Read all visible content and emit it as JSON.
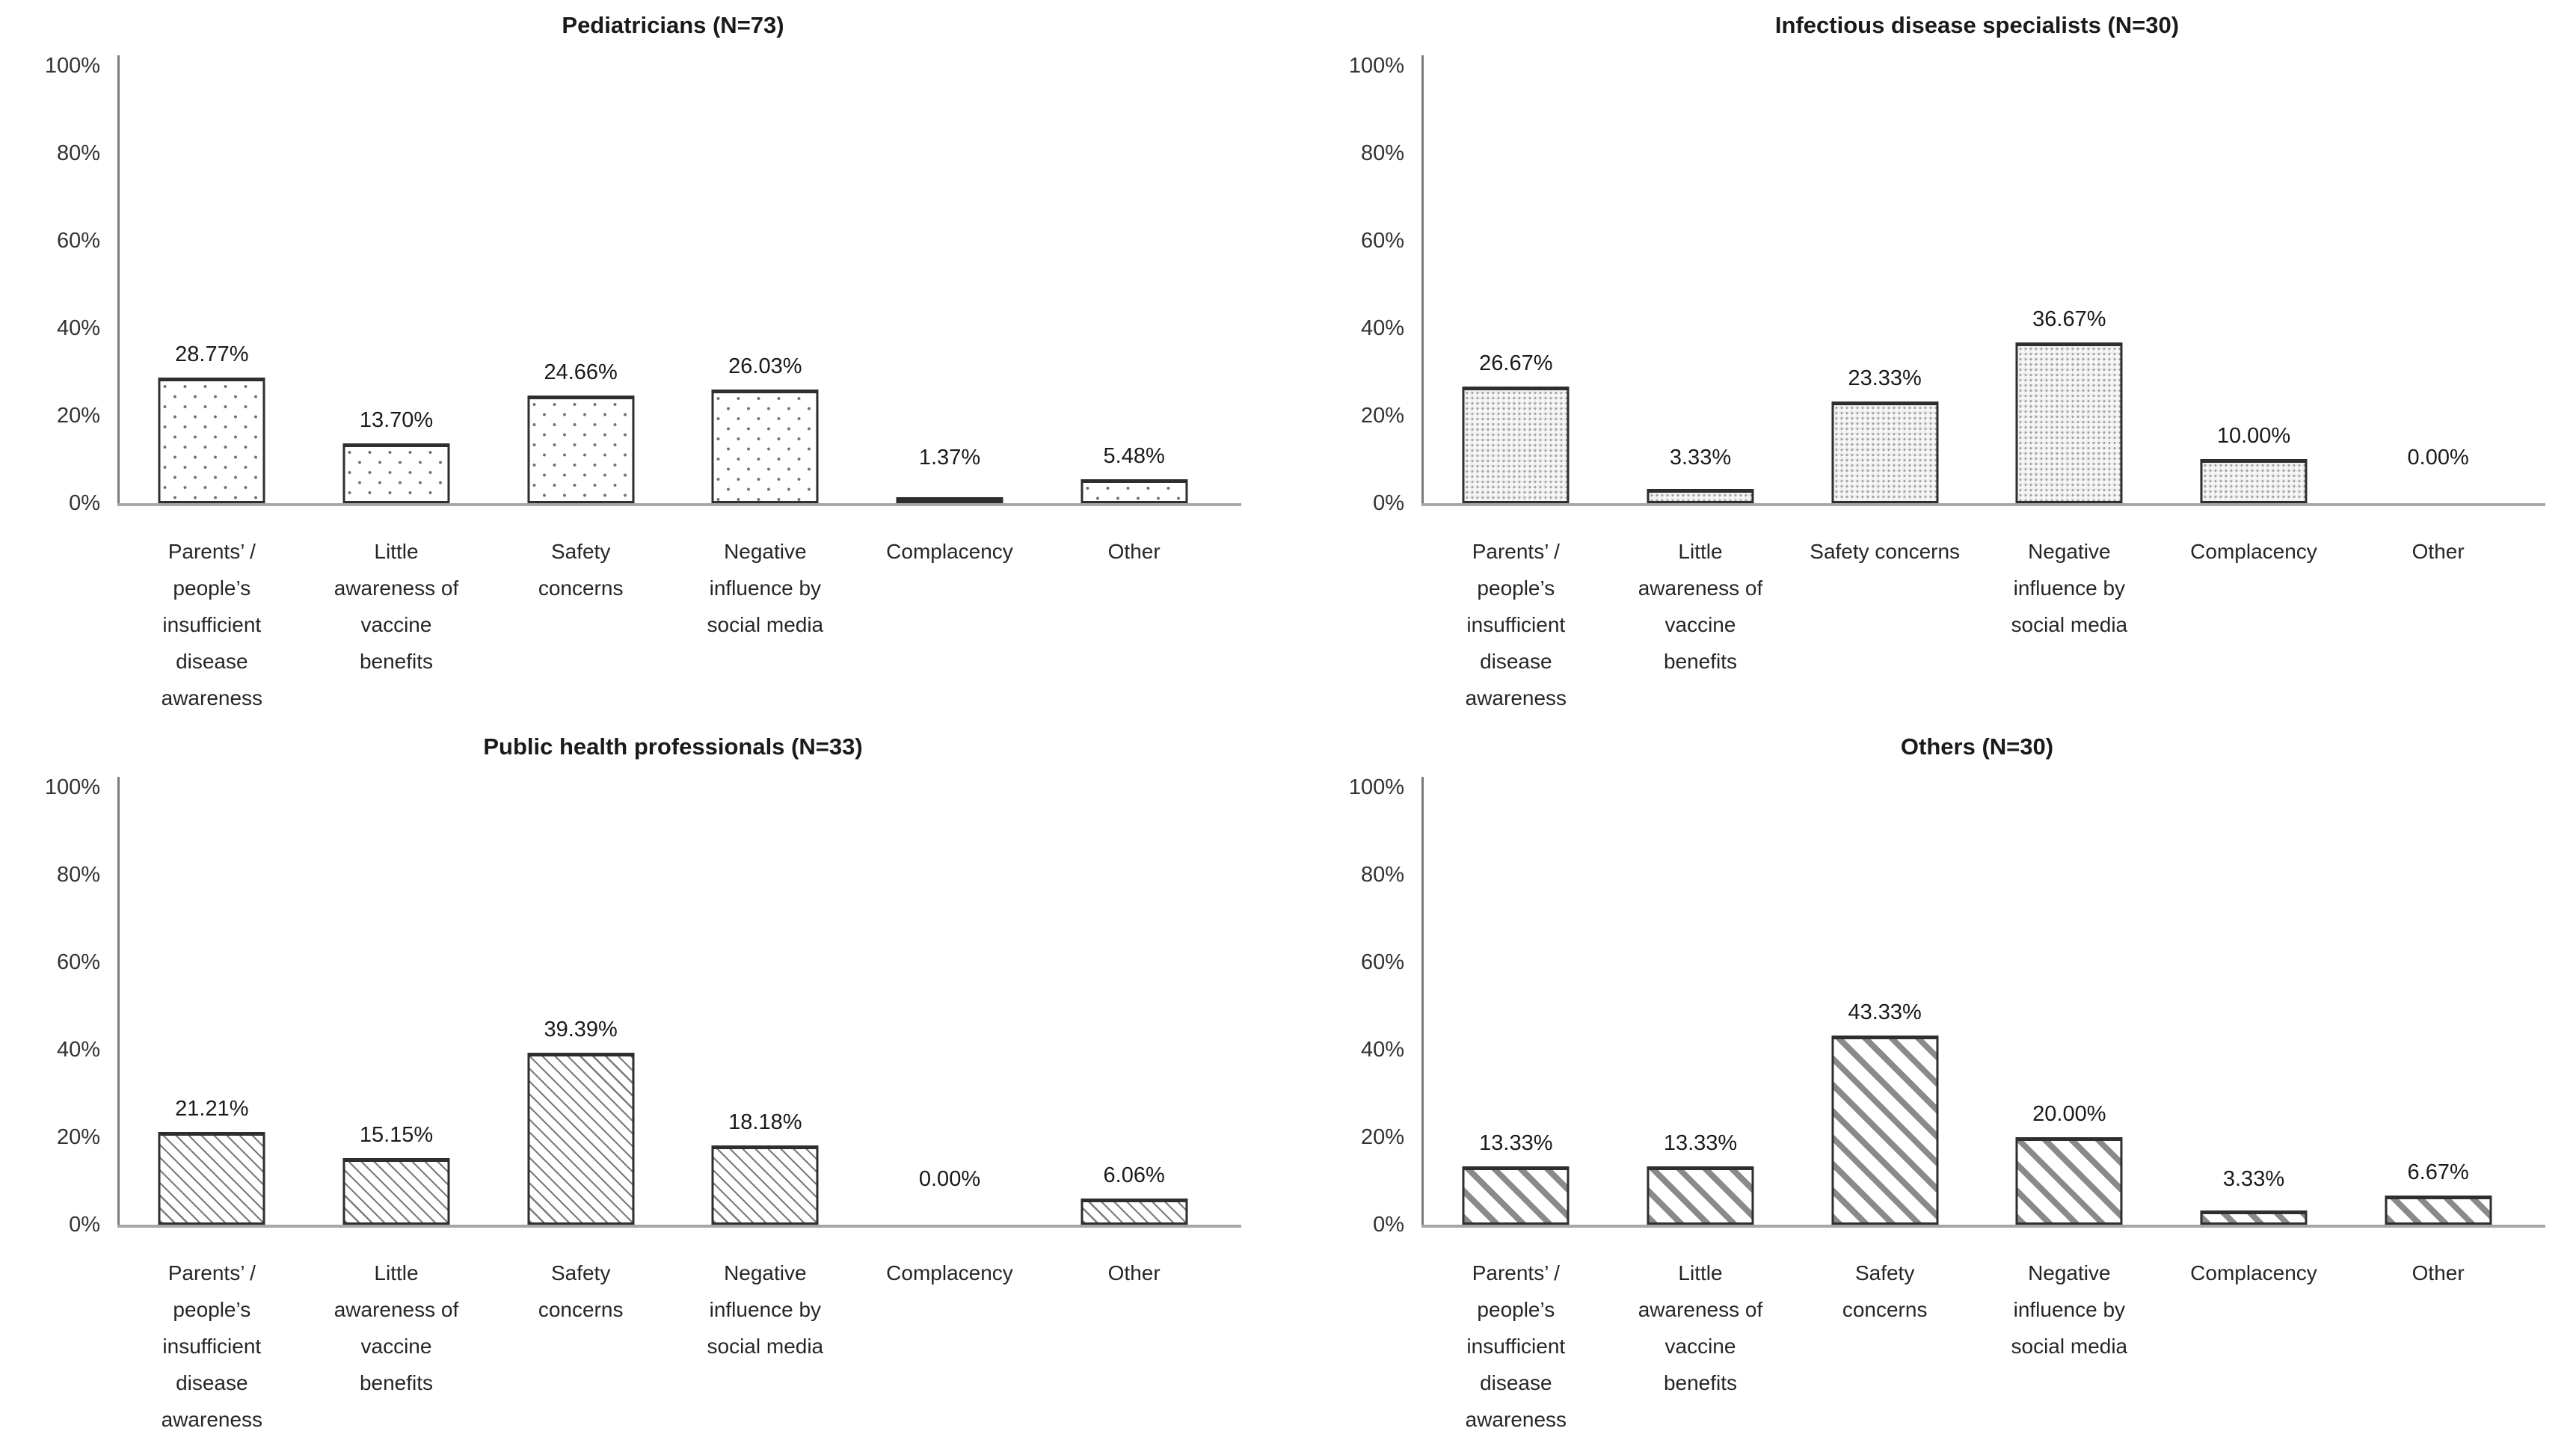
{
  "style": {
    "background": "#ffffff",
    "bar_border": "#2e2e2e",
    "y_axis_line": "#7a7a7a",
    "x_axis_line": "#a6a6a6",
    "title_color": "#1a1a1a",
    "text_color": "#262626"
  },
  "chart_data": [
    {
      "type": "bar",
      "title": "Pediatricians (N=73)",
      "categories": [
        "Parents’ / people’s insufficient disease awareness",
        "Little awareness of vaccine benefits",
        "Safety concerns",
        "Negative influence by social media",
        "Complacency",
        "Other"
      ],
      "category_label_lines": [
        [
          "Parents’ /",
          "people’s",
          "insufficient",
          "disease",
          "awareness"
        ],
        [
          "Little",
          "awareness of",
          "vaccine",
          "benefits"
        ],
        [
          "Safety",
          "concerns"
        ],
        [
          "Negative",
          "influence by",
          "social media"
        ],
        [
          "Complacency"
        ],
        [
          "Other"
        ]
      ],
      "values": [
        28.77,
        13.7,
        24.66,
        26.03,
        1.37,
        5.48
      ],
      "value_labels": [
        "28.77%",
        "13.70%",
        "24.66%",
        "26.03%",
        "1.37%",
        "5.48%"
      ],
      "ylim": [
        0,
        100
      ],
      "y_ticks": [
        "0%",
        "20%",
        "40%",
        "60%",
        "80%",
        "100%"
      ],
      "ylabel": "",
      "xlabel": "",
      "grid": "off",
      "legend": "none",
      "bar_fill_pattern": "sparse-dots"
    },
    {
      "type": "bar",
      "title": "Infectious disease specialists (N=30)",
      "categories": [
        "Parents’ / people’s insufficient disease awareness",
        "Little awareness of vaccine benefits",
        "Safety concerns",
        "Negative influence by social media",
        "Complacency",
        "Other"
      ],
      "category_label_lines": [
        [
          "Parents’ /",
          "people’s",
          "insufficient",
          "disease",
          "awareness"
        ],
        [
          "Little",
          "awareness of",
          "vaccine",
          "benefits"
        ],
        [
          "Safety concerns"
        ],
        [
          "Negative",
          "influence by",
          "social media"
        ],
        [
          "Complacency"
        ],
        [
          "Other"
        ]
      ],
      "values": [
        26.67,
        3.33,
        23.33,
        36.67,
        10.0,
        0.0
      ],
      "value_labels": [
        "26.67%",
        "3.33%",
        "23.33%",
        "36.67%",
        "10.00%",
        "0.00%"
      ],
      "ylim": [
        0,
        100
      ],
      "y_ticks": [
        "0%",
        "20%",
        "40%",
        "60%",
        "80%",
        "100%"
      ],
      "ylabel": "",
      "xlabel": "",
      "grid": "off",
      "legend": "none",
      "bar_fill_pattern": "dense-dots"
    },
    {
      "type": "bar",
      "title": "Public health professionals (N=33)",
      "categories": [
        "Parents’ / people’s insufficient disease awareness",
        "Little awareness of vaccine benefits",
        "Safety concerns",
        "Negative influence by social media",
        "Complacency",
        "Other"
      ],
      "category_label_lines": [
        [
          "Parents’ /",
          "people’s",
          "insufficient",
          "disease",
          "awareness"
        ],
        [
          "Little",
          "awareness of",
          "vaccine",
          "benefits"
        ],
        [
          "Safety",
          "concerns"
        ],
        [
          "Negative",
          "influence by",
          "social media"
        ],
        [
          "Complacency"
        ],
        [
          "Other"
        ]
      ],
      "values": [
        21.21,
        15.15,
        39.39,
        18.18,
        0.0,
        6.06
      ],
      "value_labels": [
        "21.21%",
        "15.15%",
        "39.39%",
        "18.18%",
        "0.00%",
        "6.06%"
      ],
      "ylim": [
        0,
        100
      ],
      "y_ticks": [
        "0%",
        "20%",
        "40%",
        "60%",
        "80%",
        "100%"
      ],
      "ylabel": "",
      "xlabel": "",
      "grid": "off",
      "legend": "none",
      "bar_fill_pattern": "thin-hatch"
    },
    {
      "type": "bar",
      "title": "Others (N=30)",
      "categories": [
        "Parents’ / people’s insufficient disease awareness",
        "Little awareness of vaccine benefits",
        "Safety concerns",
        "Negative influence by social media",
        "Complacency",
        "Other"
      ],
      "category_label_lines": [
        [
          "Parents’ /",
          "people’s",
          "insufficient",
          "disease",
          "awareness"
        ],
        [
          "Little",
          "awareness of",
          "vaccine",
          "benefits"
        ],
        [
          "Safety",
          "concerns"
        ],
        [
          "Negative",
          "influence by",
          "social media"
        ],
        [
          "Complacency"
        ],
        [
          "Other"
        ]
      ],
      "values": [
        13.33,
        13.33,
        43.33,
        20.0,
        3.33,
        6.67
      ],
      "value_labels": [
        "13.33%",
        "13.33%",
        "43.33%",
        "20.00%",
        "3.33%",
        "6.67%"
      ],
      "ylim": [
        0,
        100
      ],
      "y_ticks": [
        "0%",
        "20%",
        "40%",
        "60%",
        "80%",
        "100%"
      ],
      "ylabel": "",
      "xlabel": "",
      "grid": "off",
      "legend": "none",
      "bar_fill_pattern": "thick-hatch"
    }
  ]
}
